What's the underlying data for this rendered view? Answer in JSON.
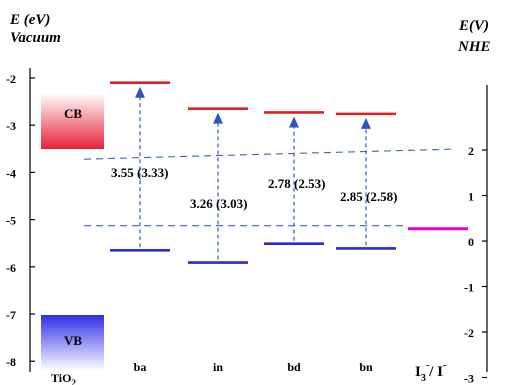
{
  "left_axis": {
    "title_line1": "E (eV)",
    "title_line2": "Vacuum",
    "ticks": [
      {
        "label": "-2",
        "value": -2
      },
      {
        "label": "-3",
        "value": -3
      },
      {
        "label": "-4",
        "value": -4
      },
      {
        "label": "-5",
        "value": -5
      },
      {
        "label": "-6",
        "value": -6
      },
      {
        "label": "-7",
        "value": -7
      },
      {
        "label": "-8",
        "value": -8
      }
    ]
  },
  "right_axis": {
    "title_line1": "E(V)",
    "title_line2": "NHE",
    "ticks": [
      {
        "label": "-3",
        "value": -3
      },
      {
        "label": "-2",
        "value": -2
      },
      {
        "label": "-1",
        "value": -1
      },
      {
        "label": "0",
        "value": 0
      },
      {
        "label": "1",
        "value": 1
      },
      {
        "label": "2",
        "value": 2
      }
    ]
  },
  "tio2": {
    "cb_label": "CB",
    "vb_label": "VB",
    "name_main": "TiO",
    "name_sub": "2",
    "cb_color": "#e8213a",
    "vb_color": "#2f2fe6"
  },
  "dyes": [
    {
      "name": "ba",
      "lumo": -2.1,
      "homo": -5.65,
      "gap_label": "3.55 (3.33)"
    },
    {
      "name": "in",
      "lumo": -2.65,
      "homo": -5.91,
      "gap_label": "3.26 (3.03)"
    },
    {
      "name": "bd",
      "lumo": -2.73,
      "homo": -5.51,
      "gap_label": "2.78 (2.53)"
    },
    {
      "name": "bn",
      "lumo": -2.76,
      "homo": -5.61,
      "gap_label": "2.85 (2.58)"
    }
  ],
  "redox": {
    "label_main": "I",
    "label_sub": "3",
    "label_sup": "-",
    "label_rest": "/ I",
    "label_sup2": "-",
    "level": -5.13,
    "color": "#e000e0"
  },
  "reference_lines": [
    {
      "name": "tio2-cb-edge",
      "level": -3.55
    },
    {
      "name": "redox-level",
      "level": -5.13
    }
  ],
  "colors": {
    "lumo": "#e02020",
    "homo": "#2a2ad8",
    "transition": "#3060c0",
    "dashed_ref": "#3a5fd0"
  }
}
